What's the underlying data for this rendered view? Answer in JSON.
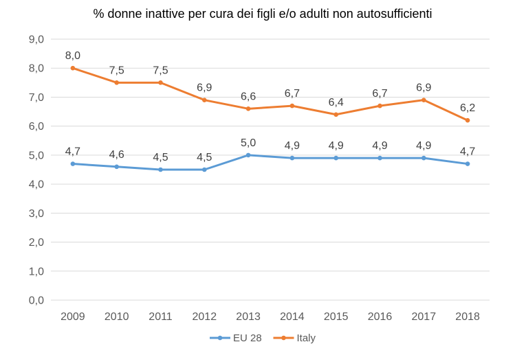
{
  "chart_data": {
    "type": "line",
    "title": "% donne inattive per cura dei figli e/o adulti non autosufficienti",
    "categories": [
      "2009",
      "2010",
      "2011",
      "2012",
      "2013",
      "2014",
      "2015",
      "2016",
      "2017",
      "2018"
    ],
    "series": [
      {
        "name": "EU 28",
        "color": "#5b9bd5",
        "values": [
          4.7,
          4.6,
          4.5,
          4.5,
          5.0,
          4.9,
          4.9,
          4.9,
          4.9,
          4.7
        ],
        "labels": [
          "4,7",
          "4,6",
          "4,5",
          "4,5",
          "5,0",
          "4,9",
          "4,9",
          "4,9",
          "4,9",
          "4,7"
        ]
      },
      {
        "name": "Italy",
        "color": "#ed7d31",
        "values": [
          8.0,
          7.5,
          7.5,
          6.9,
          6.6,
          6.7,
          6.4,
          6.7,
          6.9,
          6.2
        ],
        "labels": [
          "8,0",
          "7,5",
          "7,5",
          "6,9",
          "6,6",
          "6,7",
          "6,4",
          "6,7",
          "6,9",
          "6,2"
        ]
      }
    ],
    "ylim": [
      0,
      9
    ],
    "yticks": [
      "0,0",
      "1,0",
      "2,0",
      "3,0",
      "4,0",
      "5,0",
      "6,0",
      "7,0",
      "8,0",
      "9,0"
    ],
    "grid": true,
    "legend_position": "bottom"
  }
}
